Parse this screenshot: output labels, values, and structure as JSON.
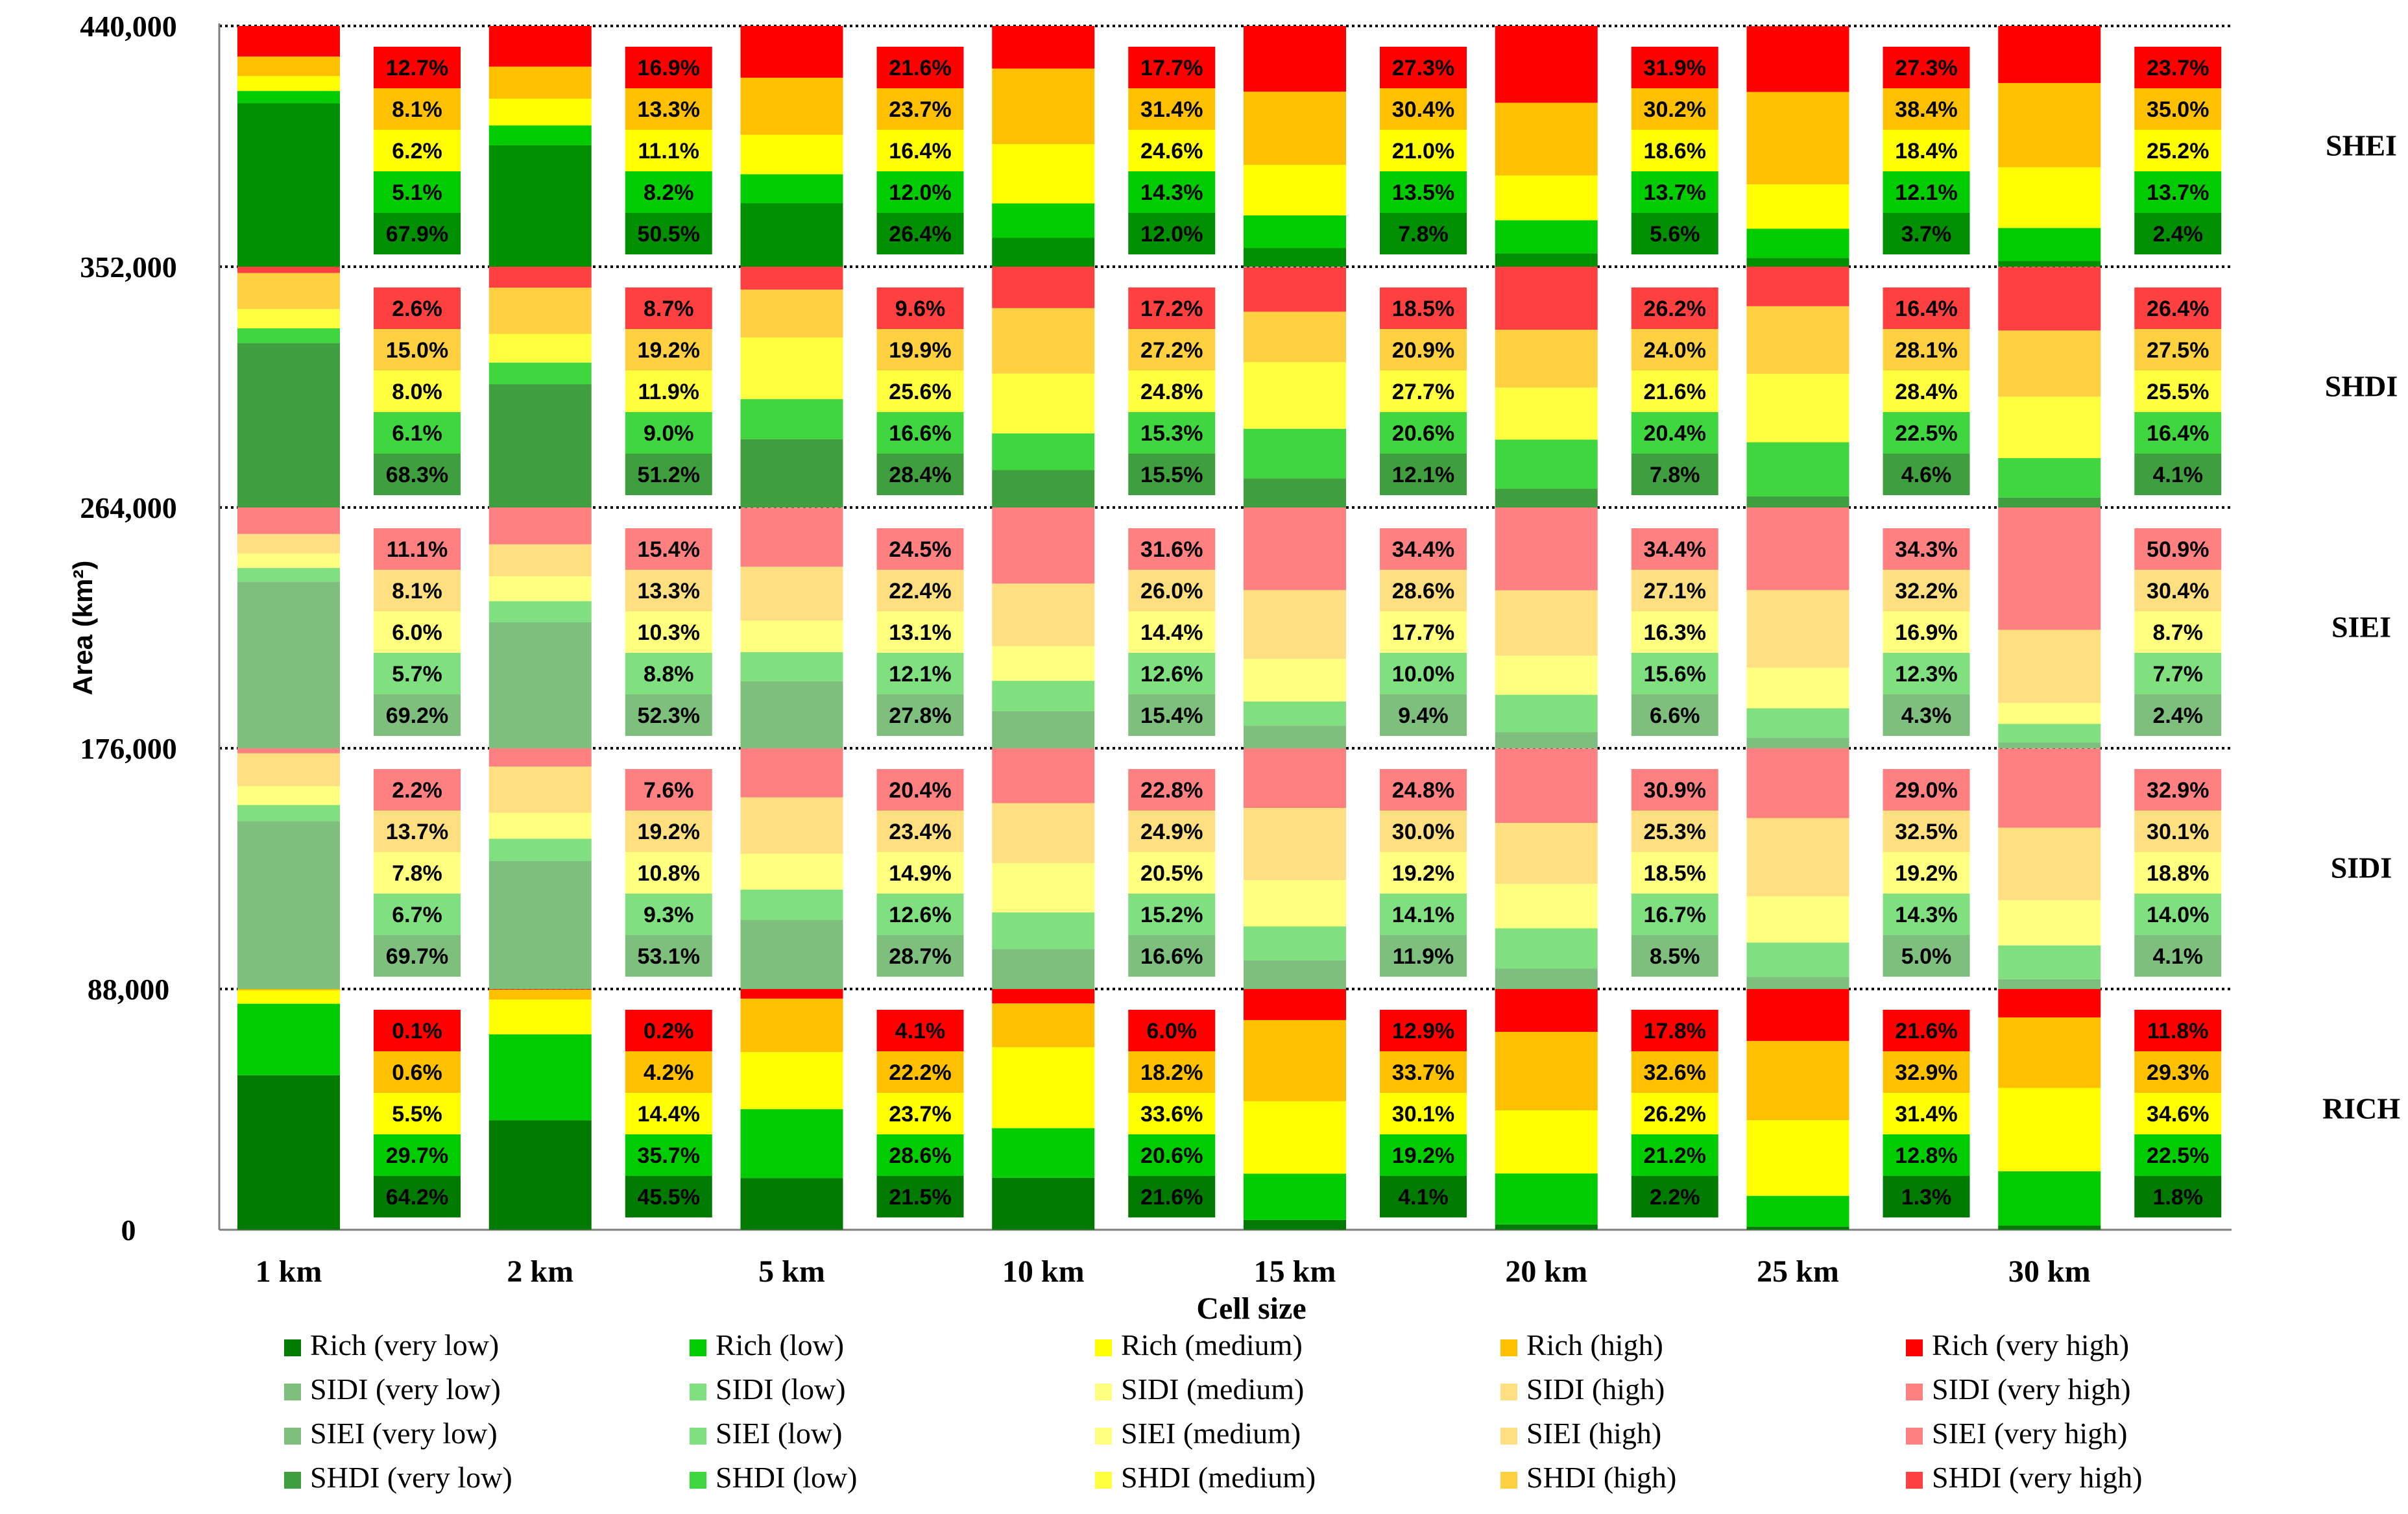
{
  "chart_data": {
    "type": "bar",
    "subtype": "stacked-grouped",
    "xlabel": "Cell size",
    "ylabel": "Area (km²)",
    "ylim": [
      0,
      440000
    ],
    "ytick_values": [
      0,
      88000,
      176000,
      264000,
      352000,
      440000
    ],
    "ytick_labels": [
      "0",
      "88,000",
      "176,000",
      "264,000",
      "352,000",
      "440,000"
    ],
    "categories": [
      "1 km",
      "2 km",
      "5 km",
      "10 km",
      "15 km",
      "20 km",
      "25 km",
      "30 km"
    ],
    "class_levels": [
      "very low",
      "low",
      "medium",
      "high",
      "very high"
    ],
    "band_capacity": 88000,
    "indices": [
      {
        "name": "RICH",
        "legend_prefix": "Rich",
        "percent_labels": [
          [
            "64.2%",
            "29.7%",
            "5.5%",
            "0.6%",
            "0.1%"
          ],
          [
            "45.5%",
            "35.7%",
            "14.4%",
            "4.2%",
            "0.2%"
          ],
          [
            "21.5%",
            "28.6%",
            "23.7%",
            "22.2%",
            "4.1%"
          ],
          [
            "21.6%",
            "20.6%",
            "33.6%",
            "18.2%",
            "6.0%"
          ],
          [
            "4.1%",
            "19.2%",
            "30.1%",
            "33.7%",
            "12.9%"
          ],
          [
            "2.2%",
            "21.2%",
            "26.2%",
            "32.6%",
            "17.8%"
          ],
          [
            "1.3%",
            "12.8%",
            "31.4%",
            "32.9%",
            "21.6%"
          ],
          [
            "1.8%",
            "22.5%",
            "34.6%",
            "29.3%",
            "11.8%"
          ]
        ]
      },
      {
        "name": "SIDI",
        "legend_prefix": "SIDI",
        "percent_labels": [
          [
            "69.7%",
            "6.7%",
            "7.8%",
            "13.7%",
            "2.2%"
          ],
          [
            "53.1%",
            "9.3%",
            "10.8%",
            "19.2%",
            "7.6%"
          ],
          [
            "28.7%",
            "12.6%",
            "14.9%",
            "23.4%",
            "20.4%"
          ],
          [
            "16.6%",
            "15.2%",
            "20.5%",
            "24.9%",
            "22.8%"
          ],
          [
            "11.9%",
            "14.1%",
            "19.2%",
            "30.0%",
            "24.8%"
          ],
          [
            "8.5%",
            "16.7%",
            "18.5%",
            "25.3%",
            "30.9%"
          ],
          [
            "5.0%",
            "14.3%",
            "19.2%",
            "32.5%",
            "29.0%"
          ],
          [
            "4.1%",
            "14.0%",
            "18.8%",
            "30.1%",
            "32.9%"
          ]
        ]
      },
      {
        "name": "SIEI",
        "legend_prefix": "SIEI",
        "percent_labels": [
          [
            "69.2%",
            "5.7%",
            "6.0%",
            "8.1%",
            "11.1%"
          ],
          [
            "52.3%",
            "8.8%",
            "10.3%",
            "13.3%",
            "15.4%"
          ],
          [
            "27.8%",
            "12.1%",
            "13.1%",
            "22.4%",
            "24.5%"
          ],
          [
            "15.4%",
            "12.6%",
            "14.4%",
            "26.0%",
            "31.6%"
          ],
          [
            "9.4%",
            "10.0%",
            "17.7%",
            "28.6%",
            "34.4%"
          ],
          [
            "6.6%",
            "15.6%",
            "16.3%",
            "27.1%",
            "34.4%"
          ],
          [
            "4.3%",
            "12.3%",
            "16.9%",
            "32.2%",
            "34.3%"
          ],
          [
            "2.4%",
            "7.7%",
            "8.7%",
            "30.4%",
            "50.9%"
          ]
        ]
      },
      {
        "name": "SHDI",
        "legend_prefix": "SHDI",
        "percent_labels": [
          [
            "68.3%",
            "6.1%",
            "8.0%",
            "15.0%",
            "2.6%"
          ],
          [
            "51.2%",
            "9.0%",
            "11.9%",
            "19.2%",
            "8.7%"
          ],
          [
            "28.4%",
            "16.6%",
            "25.6%",
            "19.9%",
            "9.6%"
          ],
          [
            "15.5%",
            "15.3%",
            "24.8%",
            "27.2%",
            "17.2%"
          ],
          [
            "12.1%",
            "20.6%",
            "27.7%",
            "20.9%",
            "18.5%"
          ],
          [
            "7.8%",
            "20.4%",
            "21.6%",
            "24.0%",
            "26.2%"
          ],
          [
            "4.6%",
            "22.5%",
            "28.4%",
            "28.1%",
            "16.4%"
          ],
          [
            "4.1%",
            "16.4%",
            "25.5%",
            "27.5%",
            "26.4%"
          ]
        ]
      },
      {
        "name": "SHEI",
        "legend_prefix": "SHEI",
        "percent_labels": [
          [
            "67.9%",
            "5.1%",
            "6.2%",
            "8.1%",
            "12.7%"
          ],
          [
            "50.5%",
            "8.2%",
            "11.1%",
            "13.3%",
            "16.9%"
          ],
          [
            "26.4%",
            "12.0%",
            "16.4%",
            "23.7%",
            "21.6%"
          ],
          [
            "12.0%",
            "14.3%",
            "24.6%",
            "31.4%",
            "17.7%"
          ],
          [
            "7.8%",
            "13.5%",
            "21.0%",
            "30.4%",
            "27.3%"
          ],
          [
            "5.6%",
            "13.7%",
            "18.6%",
            "30.2%",
            "31.9%"
          ],
          [
            "3.7%",
            "12.1%",
            "18.4%",
            "38.4%",
            "27.3%"
          ],
          [
            "2.4%",
            "13.7%",
            "25.2%",
            "35.0%",
            "23.7%"
          ]
        ]
      }
    ],
    "colors": {
      "RICH": [
        "#007A00",
        "#00CC00",
        "#FFFF00",
        "#FFC000",
        "#FF0000"
      ],
      "SIDI": [
        "#7EBF7E",
        "#80E080",
        "#FFFF80",
        "#FFDF80",
        "#FF8080"
      ],
      "SIEI": [
        "#7EBF7E",
        "#80E080",
        "#FFFF80",
        "#FFDF80",
        "#FF8080"
      ],
      "SHDI": [
        "#3F9F3F",
        "#40D640",
        "#FFFF40",
        "#FFD040",
        "#FF4040"
      ],
      "SHEI": [
        "#008F00",
        "#00CC00",
        "#FFFF00",
        "#FFC000",
        "#FF0000"
      ]
    },
    "legend_rows": [
      "RICH",
      "SIDI",
      "SIEI",
      "SHDI"
    ]
  }
}
